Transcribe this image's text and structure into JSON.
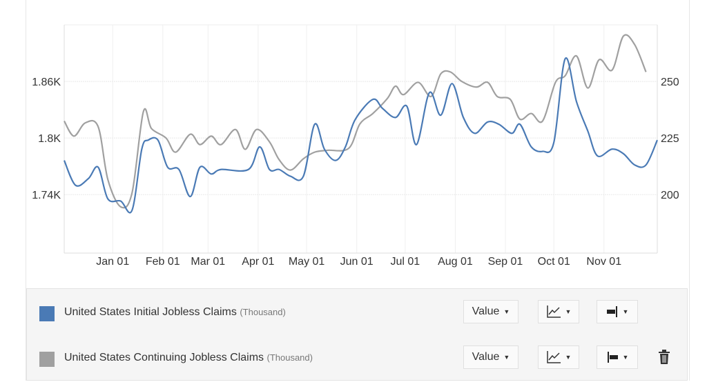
{
  "chart_data": {
    "type": "line",
    "title": "",
    "x_unit": "days since Jan 01",
    "xlim": [
      -30,
      337
    ],
    "x_ticks": [
      {
        "label": "Jan 01",
        "day": 0
      },
      {
        "label": "Feb 01",
        "day": 31
      },
      {
        "label": "Mar 01",
        "day": 59
      },
      {
        "label": "Apr 01",
        "day": 90
      },
      {
        "label": "May 01",
        "day": 120
      },
      {
        "label": "Jun 01",
        "day": 151
      },
      {
        "label": "Jul 01",
        "day": 181
      },
      {
        "label": "Aug 01",
        "day": 212
      },
      {
        "label": "Sep 01",
        "day": 243
      },
      {
        "label": "Oct 01",
        "day": 273
      },
      {
        "label": "Nov 01",
        "day": 304
      }
    ],
    "y_left": {
      "ylim": [
        1678,
        1920
      ],
      "ticks": [
        {
          "label": "1.86K",
          "value": 1860
        },
        {
          "label": "1.8K",
          "value": 1800
        },
        {
          "label": "1.74K",
          "value": 1740
        }
      ]
    },
    "y_right": {
      "ylim": [
        174,
        275
      ],
      "ticks": [
        {
          "label": "250",
          "value": 250
        },
        {
          "label": "225",
          "value": 225
        },
        {
          "label": "200",
          "value": 200
        }
      ]
    },
    "grid": true,
    "series": [
      {
        "name": "United States Initial Jobless Claims",
        "axis": "right",
        "color": "#4a7ab5",
        "x": [
          -30,
          -23,
          -15,
          -9,
          -3,
          5,
          12,
          18,
          22,
          28,
          34,
          41,
          48,
          54,
          61,
          67,
          84,
          91,
          97,
          103,
          110,
          118,
          125,
          131,
          138,
          144,
          150,
          161,
          167,
          175,
          182,
          188,
          196,
          203,
          210,
          217,
          224,
          232,
          239,
          247,
          252,
          259,
          266,
          273,
          280,
          287,
          294,
          300,
          309,
          316,
          323,
          330,
          337
        ],
        "values": [
          215,
          204,
          207,
          212,
          198,
          197,
          193,
          220,
          224,
          224,
          212,
          211,
          199,
          212,
          209,
          211,
          211,
          221,
          211,
          211,
          208,
          208,
          231,
          220,
          215,
          221,
          233,
          242,
          238,
          234,
          239,
          222,
          245,
          235,
          249,
          234,
          227,
          232,
          231,
          227,
          231,
          221,
          219,
          223,
          260,
          241,
          228,
          217,
          220,
          218,
          213,
          213,
          224
        ]
      },
      {
        "name": "United States Continuing Jobless Claims",
        "axis": "left",
        "color": "#a0a0a0",
        "x": [
          -30,
          -24,
          -17,
          -9,
          -3,
          5,
          12,
          19,
          24,
          33,
          39,
          48,
          54,
          61,
          67,
          76,
          82,
          89,
          97,
          103,
          110,
          118,
          125,
          133,
          146,
          153,
          161,
          170,
          175,
          180,
          189,
          197,
          203,
          209,
          216,
          225,
          232,
          238,
          246,
          252,
          259,
          266,
          274,
          280,
          287,
          294,
          301,
          309,
          316,
          323,
          330
        ],
        "values": [
          1818,
          1802,
          1816,
          1812,
          1756,
          1727,
          1742,
          1828,
          1810,
          1800,
          1785,
          1804,
          1793,
          1802,
          1793,
          1809,
          1788,
          1809,
          1796,
          1777,
          1766,
          1778,
          1785,
          1787,
          1789,
          1815,
          1826,
          1842,
          1855,
          1846,
          1859,
          1844,
          1868,
          1870,
          1860,
          1854,
          1859,
          1844,
          1841,
          1820,
          1826,
          1818,
          1859,
          1866,
          1887,
          1853,
          1883,
          1872,
          1908,
          1899,
          1870
        ]
      }
    ]
  },
  "legend": {
    "rows": [
      {
        "name": "United States Initial Jobless Claims",
        "unit": "(Thousand)",
        "color": "#4a7ab5",
        "value_label": "Value",
        "chart_icon": "line-chart-icon",
        "axis_icon": "axis-right-icon"
      },
      {
        "name": "United States Continuing Jobless Claims",
        "unit": "(Thousand)",
        "color": "#a0a0a0",
        "value_label": "Value",
        "chart_icon": "line-chart-icon",
        "axis_icon": "axis-left-icon",
        "delete_icon": "trash-icon"
      }
    ]
  }
}
